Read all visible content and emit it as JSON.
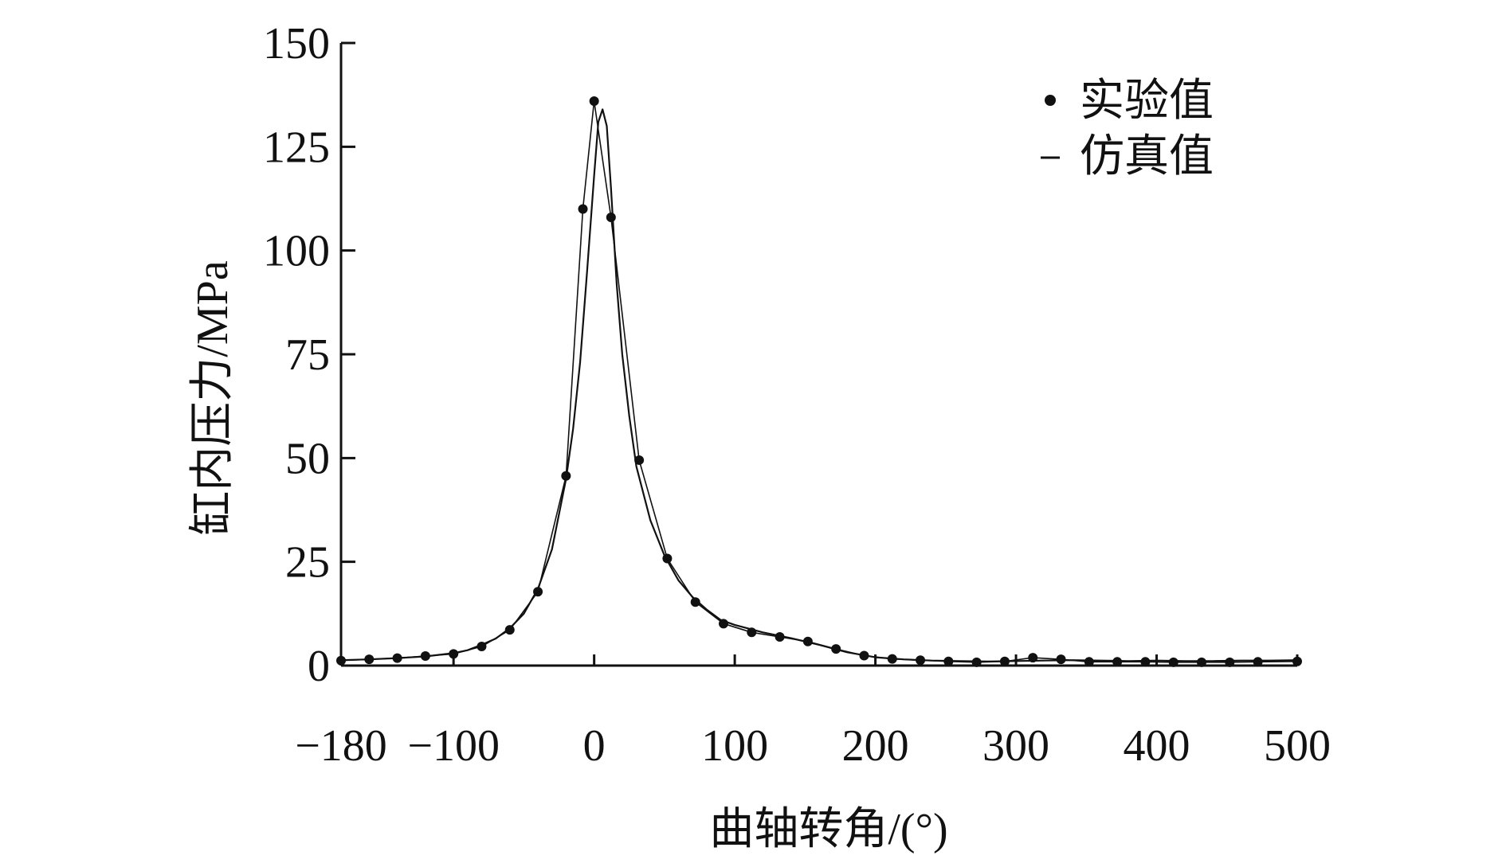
{
  "chart_data": {
    "type": "line",
    "xlabel": "曲轴转角/(°)",
    "ylabel": "缸内压力/MPa",
    "xlim": [
      -180,
      500
    ],
    "ylim": [
      0,
      150
    ],
    "xticks": [
      -180,
      -100,
      0,
      100,
      200,
      300,
      400,
      500
    ],
    "xtick_labels": [
      "−180",
      "−100",
      "0",
      "100",
      "200",
      "300",
      "400",
      "500"
    ],
    "yticks": [
      0,
      25,
      50,
      75,
      100,
      125,
      150
    ],
    "ytick_labels": [
      "0",
      "25",
      "50",
      "75",
      "100",
      "125",
      "150"
    ],
    "grid": false,
    "legend_position": "top-right",
    "colors": {
      "axis": "#111111",
      "series": "#111111"
    },
    "series": [
      {
        "name": "实验值",
        "marker": "dot",
        "x": [
          -180,
          -160,
          -140,
          -120,
          -100,
          -80,
          -60,
          -40,
          -20,
          -8,
          0,
          12,
          32,
          52,
          72,
          92,
          112,
          132,
          152,
          172,
          192,
          212,
          232,
          252,
          272,
          292,
          312,
          332,
          352,
          372,
          392,
          412,
          432,
          452,
          472,
          500
        ],
        "y": [
          1.2,
          1.5,
          1.8,
          2.3,
          2.8,
          4.6,
          8.6,
          17.8,
          45.7,
          110,
          136,
          108,
          49.5,
          25.8,
          15.3,
          10.1,
          8.0,
          6.9,
          5.8,
          4.0,
          2.4,
          1.6,
          1.3,
          1.0,
          0.8,
          1.0,
          1.9,
          1.5,
          0.9,
          0.9,
          0.9,
          0.8,
          0.8,
          0.8,
          0.9,
          1.0
        ]
      },
      {
        "name": "仿真值",
        "marker": "line",
        "x": [
          -180,
          -160,
          -140,
          -120,
          -100,
          -90,
          -80,
          -70,
          -60,
          -50,
          -40,
          -30,
          -20,
          -15,
          -10,
          -5,
          0,
          3,
          6,
          9,
          12,
          16,
          20,
          25,
          30,
          40,
          50,
          60,
          70,
          80,
          90,
          100,
          120,
          140,
          160,
          180,
          200,
          220,
          240,
          260,
          280,
          300,
          320,
          340,
          360,
          380,
          400,
          420,
          440,
          460,
          480,
          500
        ],
        "y": [
          1.3,
          1.5,
          1.8,
          2.2,
          3.0,
          3.7,
          5.0,
          6.5,
          9.0,
          12.5,
          18.5,
          28.0,
          45.0,
          57.0,
          73.0,
          95.0,
          118.0,
          131.0,
          134.0,
          130.0,
          115.0,
          92.0,
          75.0,
          60.0,
          48.0,
          35.0,
          26.5,
          20.5,
          16.5,
          13.5,
          11.0,
          9.8,
          8.0,
          6.6,
          5.0,
          3.2,
          2.0,
          1.5,
          1.2,
          1.1,
          1.0,
          1.1,
          1.2,
          1.3,
          1.2,
          1.1,
          1.2,
          1.1,
          1.1,
          1.2,
          1.2,
          1.3
        ]
      }
    ]
  }
}
